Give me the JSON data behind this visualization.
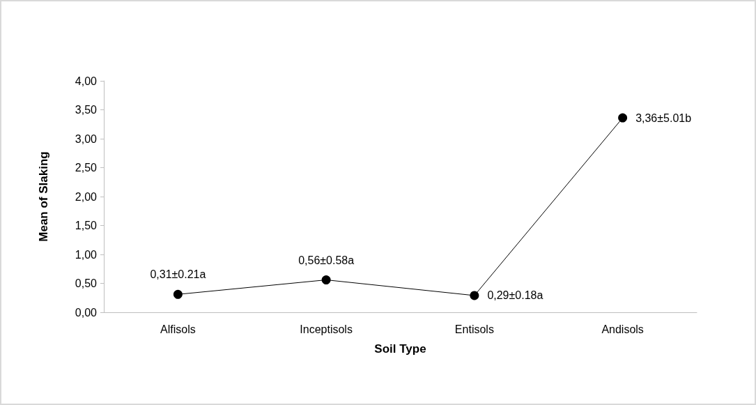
{
  "chart_data": {
    "type": "line",
    "xlabel": "Soil Type",
    "ylabel": "Mean of Slaking",
    "categories": [
      "Alfisols",
      "Inceptisols",
      "Entisols",
      "Andisols"
    ],
    "series": [
      {
        "color": "#000000",
        "values": [
          0.31,
          0.56,
          0.29,
          3.36
        ],
        "value_labels": [
          "0,31±0.21a",
          "0,56±0.58a",
          "0,29±0.18a",
          "3,36±5.01b"
        ]
      }
    ],
    "ylim": [
      0,
      4
    ],
    "yticks": [
      {
        "value": 0,
        "label": "0,00"
      },
      {
        "value": 0.5,
        "label": "0,50"
      },
      {
        "value": 1,
        "label": "1,00"
      },
      {
        "value": 1.5,
        "label": "1,50"
      },
      {
        "value": 2,
        "label": "2,00"
      },
      {
        "value": 2.5,
        "label": "2,50"
      },
      {
        "value": 3,
        "label": "3,00"
      },
      {
        "value": 3.5,
        "label": "3,50"
      },
      {
        "value": 4,
        "label": "4,00"
      }
    ],
    "grid": false,
    "marker": "circle",
    "line_style": "solid"
  }
}
